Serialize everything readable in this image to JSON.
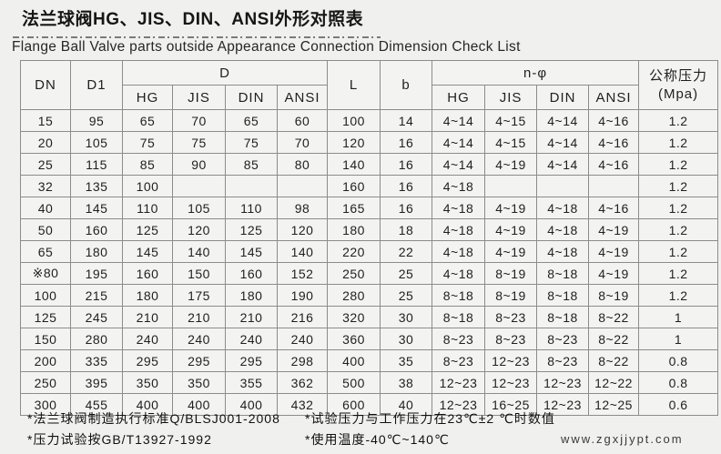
{
  "title": "法兰球阀HG、JIS、DIN、ANSI外形对照表",
  "subtitle": "Flange Ball Valve parts outside  Appearance Connection Dimension Check List",
  "table": {
    "header": {
      "dn": "DN",
      "d1": "D1",
      "d_group": "D",
      "l": "L",
      "b": "b",
      "n_group": "n-φ",
      "pressure_line1": "公称压力",
      "pressure_line2": "(Mpa)",
      "sub": [
        "HG",
        "JIS",
        "DIN",
        "ANSI"
      ]
    },
    "rows": [
      [
        "15",
        "95",
        "65",
        "70",
        "65",
        "60",
        "100",
        "14",
        "4~14",
        "4~15",
        "4~14",
        "4~16",
        "1.2"
      ],
      [
        "20",
        "105",
        "75",
        "75",
        "75",
        "70",
        "120",
        "16",
        "4~14",
        "4~15",
        "4~14",
        "4~16",
        "1.2"
      ],
      [
        "25",
        "115",
        "85",
        "90",
        "85",
        "80",
        "140",
        "16",
        "4~14",
        "4~19",
        "4~14",
        "4~16",
        "1.2"
      ],
      [
        "32",
        "135",
        "100",
        "",
        "",
        "",
        "160",
        "16",
        "4~18",
        "",
        "",
        "",
        "1.2"
      ],
      [
        "40",
        "145",
        "110",
        "105",
        "110",
        "98",
        "165",
        "16",
        "4~18",
        "4~19",
        "4~18",
        "4~16",
        "1.2"
      ],
      [
        "50",
        "160",
        "125",
        "120",
        "125",
        "120",
        "180",
        "18",
        "4~18",
        "4~19",
        "4~18",
        "4~19",
        "1.2"
      ],
      [
        "65",
        "180",
        "145",
        "140",
        "145",
        "140",
        "220",
        "22",
        "4~18",
        "4~19",
        "4~18",
        "4~19",
        "1.2"
      ],
      [
        "※80",
        "195",
        "160",
        "150",
        "160",
        "152",
        "250",
        "25",
        "4~18",
        "8~19",
        "8~18",
        "4~19",
        "1.2"
      ],
      [
        "100",
        "215",
        "180",
        "175",
        "180",
        "190",
        "280",
        "25",
        "8~18",
        "8~19",
        "8~18",
        "8~19",
        "1.2"
      ],
      [
        "125",
        "245",
        "210",
        "210",
        "210",
        "216",
        "320",
        "30",
        "8~18",
        "8~23",
        "8~18",
        "8~22",
        "1"
      ],
      [
        "150",
        "280",
        "240",
        "240",
        "240",
        "240",
        "360",
        "30",
        "8~23",
        "8~23",
        "8~23",
        "8~22",
        "1"
      ],
      [
        "200",
        "335",
        "295",
        "295",
        "295",
        "298",
        "400",
        "35",
        "8~23",
        "12~23",
        "8~23",
        "8~22",
        "0.8"
      ],
      [
        "250",
        "395",
        "350",
        "350",
        "355",
        "362",
        "500",
        "38",
        "12~23",
        "12~23",
        "12~23",
        "12~22",
        "0.8"
      ],
      [
        "300",
        "455",
        "400",
        "400",
        "400",
        "432",
        "600",
        "40",
        "12~23",
        "16~25",
        "12~23",
        "12~25",
        "0.6"
      ]
    ]
  },
  "footnotes": {
    "left1": "*法兰球阀制造执行标准Q/BLSJ001-2008",
    "left2": "*压力试验按GB/T13927-1992",
    "right1": "*试验压力与工作压力在23℃±2 ℃时数值",
    "right2": "*使用温度-40℃~140℃"
  },
  "website": "www.zgxjjypt.com"
}
